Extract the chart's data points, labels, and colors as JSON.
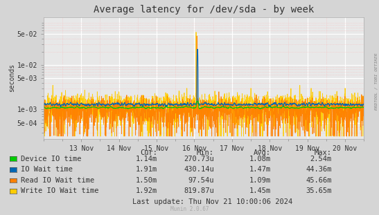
{
  "title": "Average latency for /dev/sda - by week",
  "ylabel": "seconds",
  "background_color": "#d5d5d5",
  "plot_bg_color": "#e8e8e8",
  "grid_color": "#ffffff",
  "grid_minor_color": "#f5c0c0",
  "ylim": [
    0.00022,
    0.12
  ],
  "xtick_labels": [
    "13 Nov",
    "14 Nov",
    "15 Nov",
    "16 Nov",
    "17 Nov",
    "18 Nov",
    "19 Nov",
    "20 Nov"
  ],
  "xtick_positions": [
    1,
    2,
    3,
    4,
    5,
    6,
    7,
    8
  ],
  "ytick_vals": [
    0.0005,
    0.001,
    0.005,
    0.01,
    0.05
  ],
  "ytick_labels": [
    "5e-04",
    "1e-03",
    "5e-03",
    "1e-02",
    "5e-02"
  ],
  "series": {
    "device_io": {
      "color": "#00cc00"
    },
    "io_wait": {
      "color": "#0066b3"
    },
    "read_io": {
      "color": "#ff8000"
    },
    "write_io": {
      "color": "#ffcc00"
    }
  },
  "legend_items": [
    {
      "label": "Device IO time",
      "color": "#00cc00"
    },
    {
      "label": "IO Wait time",
      "color": "#0066b3"
    },
    {
      "label": "Read IO Wait time",
      "color": "#ff8000"
    },
    {
      "label": "Write IO Wait time",
      "color": "#ffcc00"
    }
  ],
  "table_headers": [
    "Cur:",
    "Min:",
    "Avg:",
    "Max:"
  ],
  "table_data": [
    [
      "1.14m",
      "270.73u",
      "1.08m",
      "2.54m"
    ],
    [
      "1.91m",
      "430.14u",
      "1.47m",
      "44.36m"
    ],
    [
      "1.50m",
      "97.54u",
      "1.09m",
      "45.66m"
    ],
    [
      "1.92m",
      "819.87u",
      "1.45m",
      "35.65m"
    ]
  ],
  "last_update": "Last update: Thu Nov 21 10:00:06 2024",
  "watermark": "Munin 2.0.67",
  "rrdtool_label": "RRDTOOL / TOBI OETIKER",
  "title_fontsize": 10,
  "axis_fontsize": 7,
  "table_fontsize": 7.5
}
